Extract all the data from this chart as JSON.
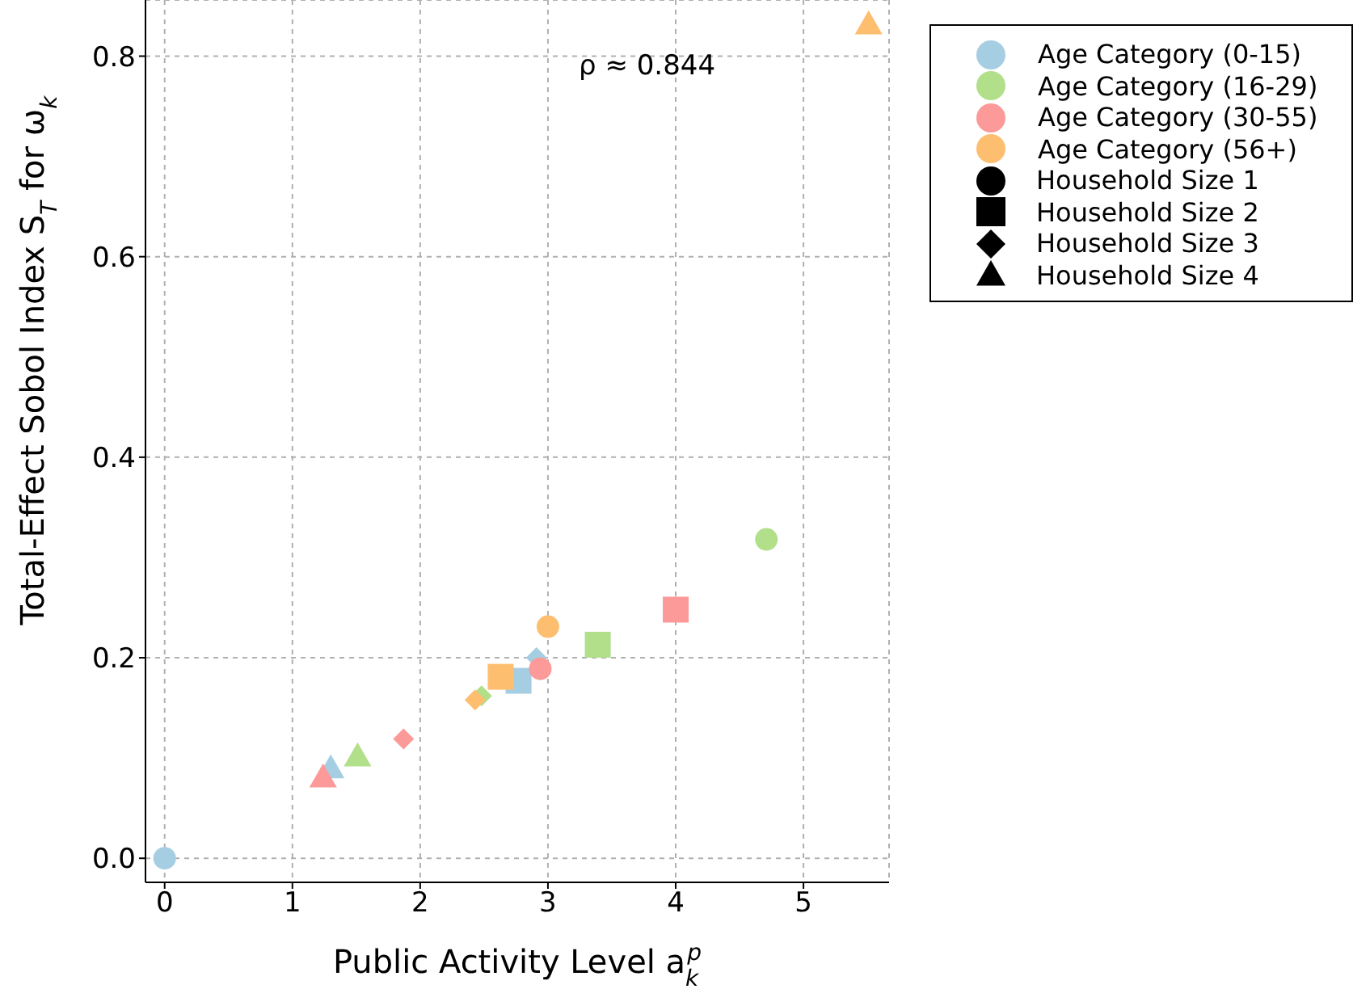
{
  "chart_data": {
    "type": "scatter",
    "xlabel": "Public Activity Level a$_{k}$$^{p}$",
    "ylabel": "Total-Effect Sobol Index S$_{T}$ for ω$_{k}$",
    "annotations": [
      "ρ ≈ 0.844"
    ],
    "xlim": [
      -0.15,
      5.67
    ],
    "ylim": [
      -0.024,
      0.856
    ],
    "xticks": [
      0,
      1,
      2,
      3,
      4,
      5
    ],
    "yticks": [
      {
        "value": 0,
        "label": "0.0"
      },
      {
        "value": 0.2,
        "label": "0.2"
      },
      {
        "value": 0.4,
        "label": "0.4"
      },
      {
        "value": 0.6,
        "label": "0.6"
      },
      {
        "value": 0.8,
        "label": "0.8"
      }
    ],
    "grid": true,
    "legend": "top right",
    "series": [
      {
        "name": "Age Category (0-15)",
        "color": "#a6cee3",
        "marker": "circle"
      },
      {
        "name": "Age Category (16-29)",
        "color": "#b2df8a",
        "marker": "circle"
      },
      {
        "name": "Age Category (30-55)",
        "color": "#fb9a99",
        "marker": "circle"
      },
      {
        "name": "Age Category (56+)",
        "color": "#fdbf6f",
        "marker": "circle"
      },
      {
        "name": "Household Size 1",
        "color": "#000000",
        "marker": "circle"
      },
      {
        "name": "Household Size 2",
        "color": "#000000",
        "marker": "square"
      },
      {
        "name": "Household Size 3",
        "color": "#000000",
        "marker": "diamond"
      },
      {
        "name": "Household Size 4",
        "color": "#000000",
        "marker": "triangle"
      },
      {
        "color": "#a6cee3",
        "marker": "circle",
        "x": [
          0
        ],
        "values": [
          0
        ]
      },
      {
        "color": "#a6cee3",
        "marker": "square",
        "x": [
          2.77
        ],
        "values": [
          0.177
        ]
      },
      {
        "color": "#a6cee3",
        "marker": "diamond",
        "x": [
          2.91
        ],
        "values": [
          0.2
        ]
      },
      {
        "color": "#a6cee3",
        "marker": "triangle",
        "x": [
          1.3
        ],
        "values": [
          0.09
        ]
      },
      {
        "color": "#b2df8a",
        "marker": "circle",
        "x": [
          4.71
        ],
        "values": [
          0.318
        ]
      },
      {
        "color": "#b2df8a",
        "marker": "square",
        "x": [
          3.39
        ],
        "values": [
          0.213
        ]
      },
      {
        "color": "#b2df8a",
        "marker": "diamond",
        "x": [
          2.48
        ],
        "values": [
          0.162
        ]
      },
      {
        "color": "#b2df8a",
        "marker": "triangle",
        "x": [
          1.51
        ],
        "values": [
          0.102
        ]
      },
      {
        "color": "#fb9a99",
        "marker": "circle",
        "x": [
          2.94
        ],
        "values": [
          0.189
        ]
      },
      {
        "color": "#fb9a99",
        "marker": "square",
        "x": [
          4.0
        ],
        "values": [
          0.248
        ]
      },
      {
        "color": "#fb9a99",
        "marker": "diamond",
        "x": [
          1.87
        ],
        "values": [
          0.119
        ]
      },
      {
        "color": "#fb9a99",
        "marker": "triangle",
        "x": [
          1.24
        ],
        "values": [
          0.081
        ]
      },
      {
        "color": "#fdbf6f",
        "marker": "circle",
        "x": [
          3.0
        ],
        "values": [
          0.231
        ]
      },
      {
        "color": "#fdbf6f",
        "marker": "square",
        "x": [
          2.63
        ],
        "values": [
          0.181
        ]
      },
      {
        "color": "#fdbf6f",
        "marker": "diamond",
        "x": [
          2.43
        ],
        "values": [
          0.158
        ]
      },
      {
        "color": "#fdbf6f",
        "marker": "triangle",
        "x": [
          5.51
        ],
        "values": [
          0.832
        ]
      }
    ]
  }
}
